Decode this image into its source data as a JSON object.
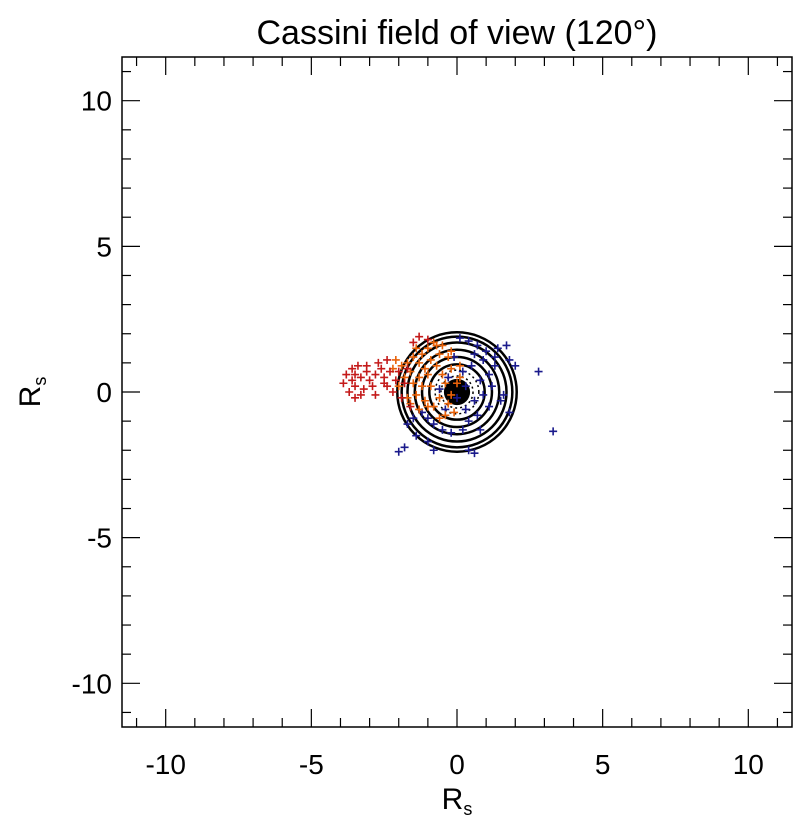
{
  "chart_data": {
    "type": "scatter",
    "title": "Cassini field of view (120°)",
    "xlabel": {
      "main": "R",
      "sub": "s"
    },
    "ylabel": {
      "main": "R",
      "sub": "s"
    },
    "xlim": [
      -11.5,
      11.5
    ],
    "ylim": [
      -11.5,
      11.5
    ],
    "major_ticks": [
      -10,
      -5,
      0,
      5,
      10
    ],
    "tick_labels": [
      "-10",
      "-5",
      "0",
      "5",
      "10"
    ],
    "minor_tick_step": 1,
    "grid": false,
    "legend": "none",
    "rings": [
      {
        "radius": 0.55,
        "style": "dotted"
      },
      {
        "radius": 0.75,
        "style": "dotted"
      },
      {
        "radius": 0.95,
        "style": "solid"
      },
      {
        "radius": 1.2,
        "style": "solid"
      },
      {
        "radius": 1.45,
        "style": "solid"
      },
      {
        "radius": 1.7,
        "style": "solid"
      },
      {
        "radius": 1.9,
        "style": "solid"
      },
      {
        "radius": 2.05,
        "style": "solid"
      }
    ],
    "planet_disk": {
      "radius": 0.45,
      "color": "#000000"
    },
    "series": [
      {
        "color": "#1a1a8c",
        "points": [
          [
            0.1,
            1.85
          ],
          [
            0.4,
            1.75
          ],
          [
            0.7,
            1.6
          ],
          [
            1.0,
            1.4
          ],
          [
            1.4,
            1.5
          ],
          [
            1.7,
            1.6
          ],
          [
            1.8,
            1.1
          ],
          [
            2.0,
            0.9
          ],
          [
            1.3,
            1.2
          ],
          [
            0.9,
            1.1
          ],
          [
            1.1,
            0.6
          ],
          [
            0.8,
            0.4
          ],
          [
            1.2,
            0.2
          ],
          [
            0.9,
            -0.1
          ],
          [
            0.6,
            -0.3
          ],
          [
            1.1,
            -0.5
          ],
          [
            0.7,
            -0.8
          ],
          [
            0.4,
            -1.0
          ],
          [
            0.2,
            -1.3
          ],
          [
            -0.2,
            -1.4
          ],
          [
            -0.5,
            -1.3
          ],
          [
            -0.8,
            -1.1
          ],
          [
            -1.0,
            -0.9
          ],
          [
            -1.2,
            -0.7
          ],
          [
            -1.5,
            -0.9
          ],
          [
            -1.7,
            -1.1
          ],
          [
            -1.4,
            -1.5
          ],
          [
            -1.0,
            -1.7
          ],
          [
            -0.8,
            -2.0
          ],
          [
            -1.8,
            -1.9
          ],
          [
            -2.0,
            -2.05
          ],
          [
            0.4,
            -2.0
          ],
          [
            0.6,
            -2.1
          ],
          [
            2.8,
            0.7
          ],
          [
            3.3,
            -1.35
          ],
          [
            1.8,
            -0.7
          ],
          [
            1.5,
            -0.3
          ],
          [
            0.3,
            0.2
          ],
          [
            -0.3,
            0.5
          ],
          [
            0.2,
            0.7
          ],
          [
            0.5,
            0.9
          ],
          [
            -0.4,
            -0.6
          ],
          [
            0.0,
            -0.2
          ],
          [
            0.3,
            -0.6
          ],
          [
            -0.6,
            0.1
          ],
          [
            1.3,
            0.9
          ],
          [
            0.6,
            1.3
          ],
          [
            -0.1,
            1.2
          ],
          [
            1.6,
            -0.1
          ],
          [
            0.8,
            -1.3
          ]
        ]
      },
      {
        "color": "#e8620a",
        "points": [
          [
            -0.2,
            1.4
          ],
          [
            -0.5,
            1.6
          ],
          [
            -0.8,
            1.7
          ],
          [
            -1.0,
            1.5
          ],
          [
            -1.2,
            1.3
          ],
          [
            -1.3,
            1.0
          ],
          [
            -1.5,
            1.2
          ],
          [
            -1.7,
            1.0
          ],
          [
            -1.1,
            0.8
          ],
          [
            -0.9,
            1.1
          ],
          [
            -0.6,
            1.3
          ],
          [
            -0.3,
            1.2
          ],
          [
            -0.7,
            0.9
          ],
          [
            -1.0,
            0.6
          ],
          [
            -1.3,
            0.5
          ],
          [
            -1.6,
            0.7
          ],
          [
            -1.9,
            0.9
          ],
          [
            -2.1,
            1.1
          ],
          [
            -2.2,
            0.8
          ],
          [
            -1.8,
            0.5
          ],
          [
            -1.5,
            0.3
          ],
          [
            -1.2,
            0.2
          ],
          [
            -1.4,
            -0.1
          ],
          [
            -1.7,
            -0.2
          ],
          [
            -1.1,
            -0.3
          ],
          [
            -0.8,
            -0.5
          ],
          [
            -0.6,
            -0.2
          ],
          [
            -0.4,
            0.3
          ],
          [
            -0.2,
            0.8
          ],
          [
            0.1,
            0.9
          ],
          [
            0.0,
            0.3
          ],
          [
            -0.2,
            -0.1
          ],
          [
            -0.4,
            -0.8
          ],
          [
            -0.6,
            -0.9
          ],
          [
            -1.0,
            -0.5
          ],
          [
            -1.3,
            -0.6
          ],
          [
            -0.9,
            0.2
          ],
          [
            -0.5,
            0.6
          ],
          [
            -1.6,
            -0.4
          ],
          [
            -2.0,
            0.2
          ],
          [
            -0.3,
            -0.4
          ],
          [
            0.1,
            0.5
          ],
          [
            -0.7,
            1.6
          ],
          [
            -1.4,
            1.5
          ],
          [
            -0.1,
            -0.7
          ]
        ]
      },
      {
        "color": "#c41a1a",
        "points": [
          [
            -3.8,
            0.6
          ],
          [
            -3.6,
            0.4
          ],
          [
            -3.5,
            0.2
          ],
          [
            -3.7,
            0.0
          ],
          [
            -3.3,
            0.5
          ],
          [
            -3.1,
            0.7
          ],
          [
            -3.4,
            0.9
          ],
          [
            -3.5,
            0.6
          ],
          [
            -3.0,
            0.4
          ],
          [
            -2.8,
            0.6
          ],
          [
            -2.6,
            0.8
          ],
          [
            -2.9,
            0.2
          ],
          [
            -2.5,
            0.5
          ],
          [
            -2.3,
            0.7
          ],
          [
            -2.7,
            1.0
          ],
          [
            -2.4,
            1.1
          ],
          [
            -2.1,
            0.4
          ],
          [
            -2.2,
            0.0
          ],
          [
            -3.2,
            0.1
          ],
          [
            -3.9,
            0.3
          ],
          [
            -3.6,
            0.8
          ],
          [
            -2.0,
            0.7
          ],
          [
            -1.8,
            0.3
          ],
          [
            -1.9,
            -0.2
          ],
          [
            -1.6,
            -0.5
          ],
          [
            -1.3,
            1.9
          ],
          [
            -1.5,
            1.7
          ],
          [
            -1.0,
            1.8
          ],
          [
            -2.5,
            0.3
          ],
          [
            -3.1,
            0.9
          ],
          [
            -3.3,
            -0.1
          ],
          [
            -2.8,
            -0.1
          ],
          [
            -2.4,
            0.2
          ],
          [
            -1.7,
            0.8
          ],
          [
            -3.5,
            -0.2
          ]
        ]
      }
    ]
  }
}
